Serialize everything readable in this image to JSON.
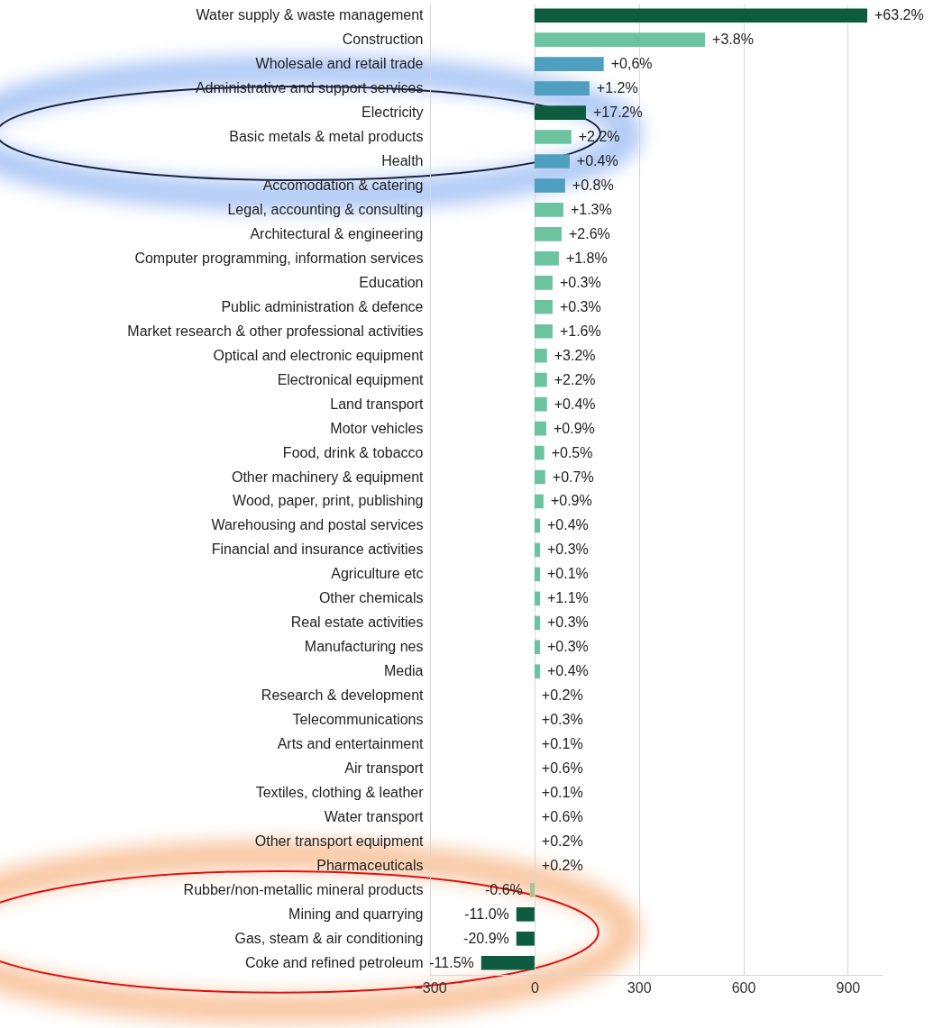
{
  "chart_data": {
    "type": "bar",
    "orientation": "horizontal",
    "categories": [
      "Water supply & waste management",
      "Construction",
      "Wholesale and retail trade",
      "Administrative and support services",
      "Electricity",
      "Basic metals & metal products",
      "Health",
      "Accomodation & catering",
      "Legal, accounting & consulting",
      "Architectural & engineering",
      "Computer programming, information services",
      "Education",
      "Public administration & defence",
      "Market research & other professional activities",
      "Optical and electronic equipment",
      "Electronical equipment",
      "Land transport",
      "Motor vehicles",
      "Food, drink & tobacco",
      "Other machinery & equipment",
      "Wood, paper, print, publishing",
      "Warehousing and postal services",
      "Financial and insurance activities",
      "Agriculture etc",
      "Other chemicals",
      "Real estate activities",
      "Manufacturing nes",
      "Media",
      "Research & development",
      "Telecommunications",
      "Arts and entertainment",
      "Air transport",
      "Textiles, clothing & leather",
      "Water transport",
      "Other transport equipment",
      "Pharmaceuticals",
      "Rubber/non-metallic mineral products",
      "Mining and quarrying",
      "Gas, steam & air conditioning",
      "Coke and refined petroleum"
    ],
    "values": [
      956,
      490,
      199,
      158,
      148,
      106,
      101,
      88,
      83,
      78,
      70,
      52,
      52,
      52,
      36,
      36,
      36,
      34,
      28,
      31,
      26,
      16,
      16,
      16,
      16,
      16,
      16,
      16,
      0,
      0,
      0,
      0,
      0,
      0,
      0,
      0,
      -13,
      -52,
      -52,
      -153
    ],
    "annotations": [
      {
        "text": "+63.2%",
        "x": 956,
        "y": "Water supply & waste management"
      },
      {
        "text": "+3.8%",
        "x": 490,
        "y": "Construction"
      },
      {
        "text": "+0,6%",
        "x": 199,
        "y": "Wholesale and retail trade"
      },
      {
        "text": "+1.2%",
        "x": 158,
        "y": "Administrative and support services"
      },
      {
        "text": "+17.2%",
        "x": 148,
        "y": "Electricity"
      },
      {
        "text": "+2.2%",
        "x": 106,
        "y": "Basic metals & metal products"
      },
      {
        "text": "+0.4%",
        "x": 101,
        "y": "Health"
      },
      {
        "text": "+0.8%",
        "x": 88,
        "y": "Accomodation & catering"
      },
      {
        "text": "+1.3%",
        "x": 83,
        "y": "Legal, accounting & consulting"
      },
      {
        "text": "+2.6%",
        "x": 78,
        "y": "Architectural & engineering"
      },
      {
        "text": "+1.8%",
        "x": 70,
        "y": "Computer programming, information services"
      },
      {
        "text": "+0.3%",
        "x": 52,
        "y": "Education"
      },
      {
        "text": "+0.3%",
        "x": 52,
        "y": "Public administration & defence"
      },
      {
        "text": "+1.6%",
        "x": 52,
        "y": "Market research & other professional activities"
      },
      {
        "text": "+3.2%",
        "x": 36,
        "y": "Optical and electronic equipment"
      },
      {
        "text": "+2.2%",
        "x": 36,
        "y": "Electronical equipment"
      },
      {
        "text": "+0.4%",
        "x": 36,
        "y": "Land transport"
      },
      {
        "text": "+0.9%",
        "x": 34,
        "y": "Motor vehicles"
      },
      {
        "text": "+0.5%",
        "x": 28,
        "y": "Food, drink & tobacco"
      },
      {
        "text": "+0.7%",
        "x": 31,
        "y": "Other machinery & equipment"
      },
      {
        "text": "+0.9%",
        "x": 26,
        "y": "Wood, paper, print, publishing"
      },
      {
        "text": "+0.4%",
        "x": 16,
        "y": "Warehousing and postal services"
      },
      {
        "text": "+0.3%",
        "x": 16,
        "y": "Financial and insurance activities"
      },
      {
        "text": "+0.1%",
        "x": 16,
        "y": "Agriculture etc"
      },
      {
        "text": "+1.1%",
        "x": 16,
        "y": "Other chemicals"
      },
      {
        "text": "+0.3%",
        "x": 16,
        "y": "Real estate activities"
      },
      {
        "text": "+0.3%",
        "x": 16,
        "y": "Manufacturing nes"
      },
      {
        "text": "+0.4%",
        "x": 16,
        "y": "Media"
      },
      {
        "text": "+0.2%",
        "x": 0,
        "y": "Research & development"
      },
      {
        "text": "+0.3%",
        "x": 0,
        "y": "Telecommunications"
      },
      {
        "text": "+0.1%",
        "x": 0,
        "y": "Arts and entertainment"
      },
      {
        "text": "+0.6%",
        "x": 0,
        "y": "Air transport"
      },
      {
        "text": "+0.1%",
        "x": 0,
        "y": "Textiles, clothing & leather"
      },
      {
        "text": "+0.6%",
        "x": 0,
        "y": "Water transport"
      },
      {
        "text": "+0.2%",
        "x": 0,
        "y": "Other transport equipment"
      },
      {
        "text": "+0.2%",
        "x": 0,
        "y": "Pharmaceuticals"
      },
      {
        "text": "-0.6%",
        "x": -13,
        "y": "Rubber/non-metallic mineral products"
      },
      {
        "text": "-11.0%",
        "x": -52,
        "y": "Mining and quarrying"
      },
      {
        "text": "-20.9%",
        "x": -52,
        "y": "Gas, steam & air conditioning"
      },
      {
        "text": "-11.5%",
        "x": -153,
        "y": "Coke and refined petroleum"
      }
    ],
    "colors": [
      "#0d5c3f",
      "#6cc3a0",
      "#4f9fc0",
      "#4f9fc0",
      "#0d5c3f",
      "#6cc3a0",
      "#4f9fc0",
      "#4f9fc0",
      "#6cc3a0",
      "#6cc3a0",
      "#6cc3a0",
      "#6cc3a0",
      "#6cc3a0",
      "#6cc3a0",
      "#6cc3a0",
      "#6cc3a0",
      "#6cc3a0",
      "#6cc3a0",
      "#6cc3a0",
      "#6cc3a0",
      "#6cc3a0",
      "#6cc3a0",
      "#6cc3a0",
      "#6cc3a0",
      "#6cc3a0",
      "#6cc3a0",
      "#6cc3a0",
      "#6cc3a0",
      "#6cc3a0",
      "#6cc3a0",
      "#6cc3a0",
      "#6cc3a0",
      "#6cc3a0",
      "#6cc3a0",
      "#6cc3a0",
      "#6cc3a0",
      "#a8c490",
      "#0d5c3f",
      "#0d5c3f",
      "#0d5c3f"
    ],
    "xlim": [
      -300,
      1000
    ],
    "xticks": [
      -300,
      0,
      300,
      600,
      900
    ],
    "grid": "x"
  }
}
